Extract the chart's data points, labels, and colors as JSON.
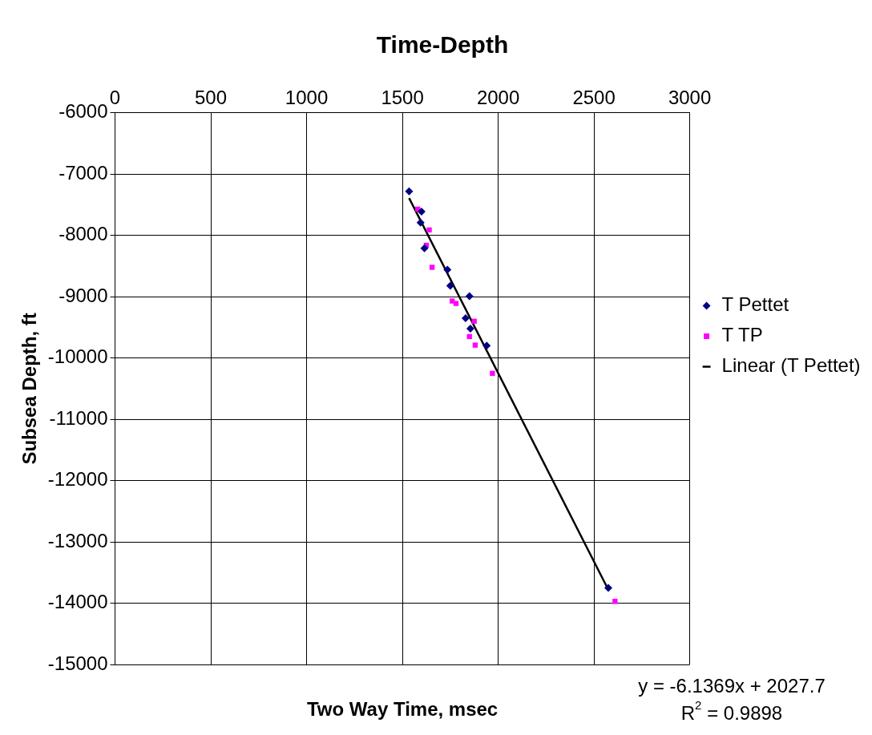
{
  "chart_data": {
    "type": "scatter",
    "title": "Time-Depth",
    "xlabel": "Two Way Time, msec",
    "ylabel": "Subsea Depth, ft",
    "xlim": [
      0,
      3000
    ],
    "xticks": [
      0,
      500,
      1000,
      1500,
      2000,
      2500,
      3000
    ],
    "ylim": [
      -15000,
      -6000
    ],
    "yticks": [
      -15000,
      -14000,
      -13000,
      -12000,
      -11000,
      -10000,
      -9000,
      -8000,
      -7000,
      -6000
    ],
    "grid": true,
    "legend": "right",
    "annotations": [
      "y = -6.1369x + 2027.7",
      "R$^{2}$ = 0.9898"
    ],
    "series": [
      {
        "name": "T Pettet",
        "color": "#000080",
        "marker": "diamond",
        "x": [
          1535,
          1600,
          1595,
          1615,
          1735,
          1750,
          1850,
          1830,
          1855,
          1940,
          2575
        ],
        "values": [
          -7280,
          -7610,
          -7790,
          -8210,
          -8560,
          -8820,
          -8990,
          -9350,
          -9520,
          -9800,
          -13750
        ]
      },
      {
        "name": "T TP",
        "color": "#ff00ff",
        "marker": "square",
        "x": [
          1580,
          1640,
          1625,
          1655,
          1760,
          1780,
          1875,
          1850,
          1880,
          1970,
          2610
        ],
        "values": [
          -7570,
          -7910,
          -8160,
          -8520,
          -9070,
          -9110,
          -9400,
          -9650,
          -9790,
          -10250,
          -13970
        ]
      },
      {
        "name": "Linear (T Pettet)",
        "type": "line",
        "color": "#000000",
        "marker": "none",
        "x": [
          1535,
          2575
        ],
        "values": [
          -7390,
          -13780
        ]
      }
    ]
  }
}
